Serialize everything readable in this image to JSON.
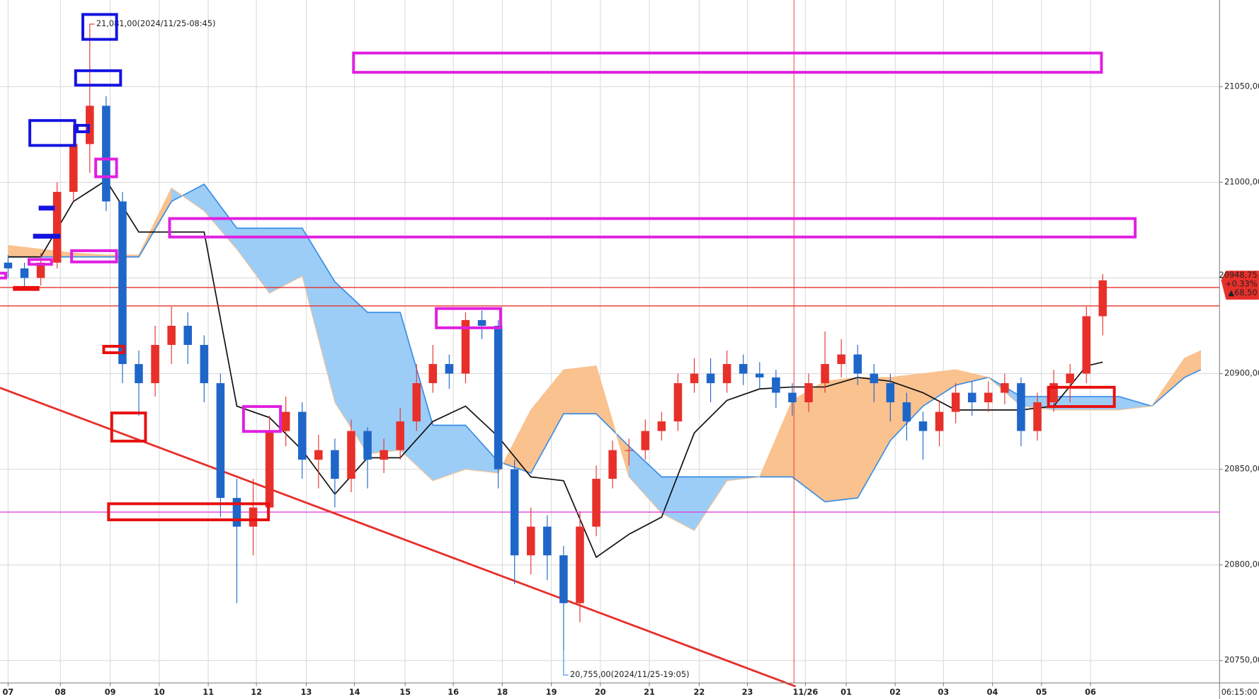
{
  "chart_data": {
    "type": "candlestick",
    "x": [
      0,
      2,
      4,
      6,
      8,
      10,
      12,
      14,
      16,
      18,
      20,
      22,
      24,
      26,
      28,
      30,
      32,
      34,
      36,
      38,
      40,
      42,
      44,
      46,
      48,
      50,
      52,
      54,
      56,
      58,
      60,
      62,
      64,
      66,
      68,
      70,
      72,
      74,
      76,
      78,
      80,
      82,
      84,
      86,
      88,
      90,
      92,
      94,
      96,
      98,
      100,
      102,
      104,
      106,
      108,
      110,
      112,
      114,
      116,
      118,
      120,
      122,
      124,
      126,
      128,
      130,
      132,
      134
    ],
    "open": [
      20958,
      20955,
      20950,
      20958,
      20995,
      21020,
      21040,
      20990,
      20905,
      20895,
      20915,
      20925,
      20915,
      20895,
      20835,
      20820,
      20830,
      20870,
      20880,
      20855,
      20860,
      20845,
      20870,
      20855,
      20860,
      20875,
      20895,
      20905,
      20900,
      20928,
      20925,
      20850,
      20805,
      20820,
      20805,
      20780,
      20820,
      20845,
      20860,
      20860,
      20870,
      20875,
      20895,
      20900,
      20895,
      20905,
      20900,
      20898,
      20890,
      20885,
      20895,
      20905,
      20910,
      20900,
      20895,
      20885,
      20875,
      20870,
      20880,
      20890,
      20885,
      20890,
      20895,
      20870,
      20885,
      20895,
      20900,
      20930
    ],
    "high": [
      20962,
      20958,
      20963,
      21000,
      21030,
      21081,
      21045,
      20995,
      20912,
      20925,
      20935,
      20932,
      20920,
      20900,
      20845,
      20845,
      20878,
      20888,
      20885,
      20868,
      20866,
      20876,
      20872,
      20866,
      20882,
      20905,
      20915,
      20910,
      20932,
      20933,
      20928,
      20855,
      20830,
      20826,
      20810,
      20828,
      20852,
      20865,
      20866,
      20876,
      20880,
      20900,
      20908,
      20908,
      20912,
      20910,
      20906,
      20902,
      20895,
      20900,
      20922,
      20918,
      20915,
      20905,
      20900,
      20890,
      20880,
      20886,
      20895,
      20896,
      20896,
      20900,
      20898,
      20890,
      20902,
      20905,
      20935,
      20952
    ],
    "low": [
      20950,
      20944,
      20946,
      20955,
      20990,
      21005,
      20985,
      20895,
      20878,
      20888,
      20905,
      20905,
      20885,
      20825,
      20780,
      20805,
      20825,
      20862,
      20845,
      20840,
      20830,
      20838,
      20840,
      20848,
      20855,
      20870,
      20890,
      20892,
      20895,
      20918,
      20840,
      20790,
      20795,
      20792,
      20755,
      20770,
      20815,
      20840,
      20852,
      20855,
      20865,
      20870,
      20890,
      20885,
      20890,
      20894,
      20892,
      20882,
      20878,
      20880,
      20890,
      20898,
      20894,
      20885,
      20875,
      20865,
      20855,
      20862,
      20874,
      20878,
      20880,
      20884,
      20862,
      20865,
      20880,
      20885,
      20895,
      20920
    ],
    "close": [
      20955,
      20950,
      20958,
      20995,
      21020,
      21040,
      20990,
      20905,
      20895,
      20915,
      20925,
      20915,
      20895,
      20835,
      20820,
      20830,
      20870,
      20880,
      20855,
      20860,
      20845,
      20870,
      20855,
      20860,
      20875,
      20895,
      20905,
      20900,
      20928,
      20925,
      20850,
      20805,
      20820,
      20805,
      20780,
      20820,
      20845,
      20860,
      20860,
      20870,
      20875,
      20895,
      20900,
      20895,
      20905,
      20900,
      20898,
      20890,
      20885,
      20895,
      20905,
      20910,
      20900,
      20895,
      20885,
      20875,
      20870,
      20880,
      20890,
      20885,
      20890,
      20895,
      20870,
      20885,
      20895,
      20900,
      20930,
      20948.75
    ],
    "up_color": "#e8302a",
    "down_color": "#1f66c9",
    "base_line": {
      "color": "#111111",
      "x": [
        0,
        4,
        8,
        12,
        16,
        20,
        24,
        28,
        32,
        36,
        40,
        44,
        48,
        52,
        56,
        60,
        64,
        68,
        72,
        76,
        80,
        84,
        88,
        92,
        96,
        100,
        104,
        108,
        112,
        116,
        120,
        124,
        128,
        132,
        134
      ],
      "values": [
        20961,
        20961,
        20990,
        21001,
        20974,
        20974,
        20974,
        20883,
        20877,
        20860,
        20837,
        20856,
        20856,
        20875,
        20883,
        20867,
        20846,
        20844,
        20804,
        20816,
        20825,
        20869,
        20886,
        20892,
        20893,
        20893,
        20898,
        20896,
        20890,
        20881,
        20881,
        20881,
        20883,
        20904,
        20906
      ]
    },
    "cloud": {
      "line_color": "#3a8ee6",
      "bull_fill": "#9ccdf7",
      "bear_fill": "#f9c28f",
      "x": [
        0,
        4,
        8,
        12,
        16,
        20,
        24,
        28,
        32,
        36,
        40,
        44,
        48,
        52,
        56,
        60,
        64,
        68,
        72,
        76,
        80,
        84,
        88,
        92,
        96,
        100,
        104,
        108,
        112,
        116,
        120,
        124,
        128,
        132,
        136,
        140,
        144,
        146
      ],
      "span_a": [
        20961,
        20961,
        20961,
        20961,
        20961,
        20990,
        20999,
        20976,
        20976,
        20976,
        20948,
        20932,
        20932,
        20873,
        20873,
        20854,
        20848,
        20879,
        20879,
        20862,
        20846,
        20846,
        20846,
        20846,
        20846,
        20833,
        20835,
        20865,
        20883,
        20894,
        20898,
        20888,
        20888,
        20888,
        20888,
        20883,
        20898,
        20902
      ],
      "span_b": [
        20967,
        20965,
        20963,
        20962,
        20962,
        20997,
        20985,
        20965,
        20942,
        20951,
        20885,
        20858,
        20860,
        20844,
        20850,
        20848,
        20881,
        20902,
        20904,
        20846,
        20827,
        20818,
        20844,
        20846,
        20886,
        20896,
        20898,
        20898,
        20900,
        20902,
        20898,
        20883,
        20881,
        20881,
        20881,
        20883,
        20908,
        20912
      ]
    },
    "hlines": [
      {
        "value": 20945,
        "color": "#e8302a"
      },
      {
        "value": 20935.4,
        "color": "#e8302a"
      },
      {
        "value": 20827.6,
        "color": "#e040e0"
      }
    ],
    "vline": {
      "value": 96.2,
      "color": "#e8302a"
    },
    "trendline": {
      "color": "#e8302a",
      "x": [
        -1,
        96.4
      ],
      "values": [
        20892.6,
        20736.5
      ]
    },
    "high_label": "21,081,00(2024/11/25-08:45)",
    "low_label": "20,755,00(2024/11/25-19:05)",
    "price_tag": [
      "20948,75",
      "+0.33%",
      "▲68,50"
    ],
    "cursor_time": "06:15:00",
    "xlim": [
      -0.98,
      148.3
    ],
    "ylim": [
      20738.3,
      21095.3
    ],
    "xticks": [
      {
        "value": 0,
        "label": "07"
      },
      {
        "value": 6.4,
        "label": "08"
      },
      {
        "value": 12.5,
        "label": "09"
      },
      {
        "value": 18.5,
        "label": "10"
      },
      {
        "value": 24.5,
        "label": "11"
      },
      {
        "value": 30.4,
        "label": "12"
      },
      {
        "value": 36.5,
        "label": "13"
      },
      {
        "value": 42.4,
        "label": "14"
      },
      {
        "value": 48.6,
        "label": "15"
      },
      {
        "value": 54.5,
        "label": "16"
      },
      {
        "value": 60.5,
        "label": "18"
      },
      {
        "value": 66.5,
        "label": "19"
      },
      {
        "value": 72.5,
        "label": "20"
      },
      {
        "value": 78.5,
        "label": "21"
      },
      {
        "value": 84.6,
        "label": "22"
      },
      {
        "value": 90.5,
        "label": "23"
      },
      {
        "value": 97.6,
        "label": "11/26"
      },
      {
        "value": 102.6,
        "label": "01"
      },
      {
        "value": 108.6,
        "label": "02"
      },
      {
        "value": 114.5,
        "label": "03"
      },
      {
        "value": 120.5,
        "label": "04"
      },
      {
        "value": 126.5,
        "label": "05"
      },
      {
        "value": 132.5,
        "label": "06"
      }
    ],
    "yticks": [
      {
        "value": 21050,
        "label": "21050,00"
      },
      {
        "value": 21000,
        "label": "21000,00"
      },
      {
        "value": 20950,
        "label": "20950,00"
      },
      {
        "value": 20900,
        "label": "20900,00"
      },
      {
        "value": 20850,
        "label": "20850,00"
      },
      {
        "value": 20800,
        "label": "20800,00"
      },
      {
        "value": 20750,
        "label": "20750,00"
      }
    ],
    "grid": true
  }
}
